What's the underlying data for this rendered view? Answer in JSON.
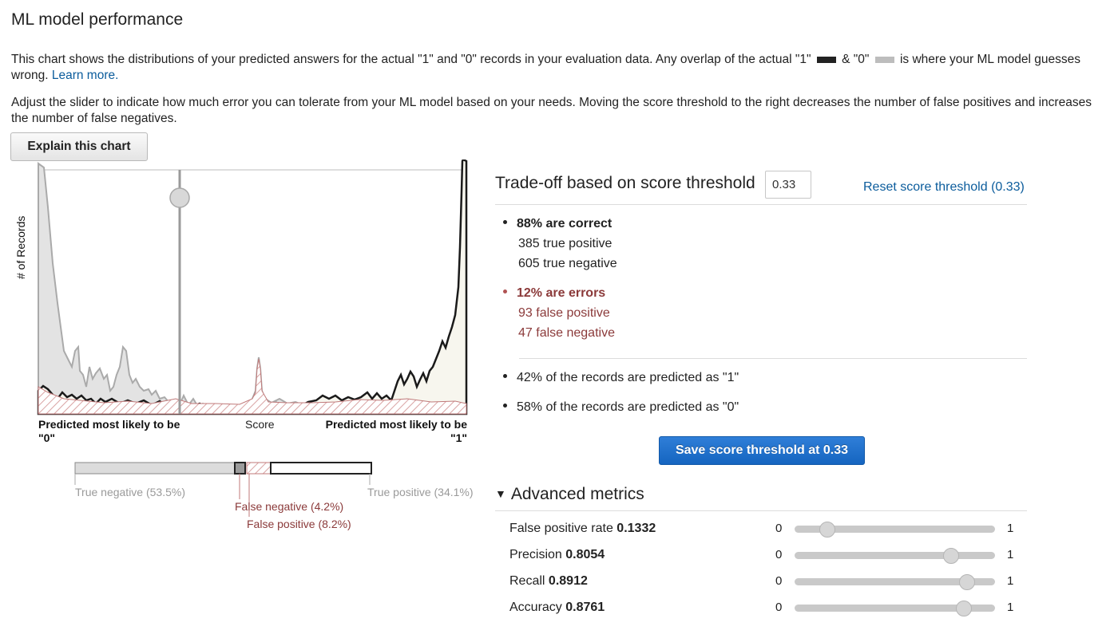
{
  "page": {
    "title": "ML model performance",
    "para1_text": "This chart shows the distributions of your predicted answers for the actual \"1\" and \"0\" records in your evaluation data. Any overlap of the actual \"1\"",
    "para1_amp": "&",
    "para1_zero": "\"0\"",
    "para1_tail": "is where your ML model guesses wrong.",
    "learn_more": "Learn more.",
    "para2_text": "Adjust the slider to indicate how much error you can tolerate from your ML model based on your needs. Moving the score threshold to the right decreases the number of false positives and increases the number of false negatives.",
    "explain_button": "Explain this chart"
  },
  "colors": {
    "actual_1": "#222222",
    "actual_0": "#bdbdbd",
    "error": "#8b3a3a",
    "primary": "#1a6dcc",
    "link": "#0b5c9c"
  },
  "chart": {
    "ylabel": "# of Records",
    "xlabel": "Score",
    "left_label": "Predicted most likely to be",
    "left_value": "\"0\"",
    "right_label": "Predicted most likely to be",
    "right_value": "\"1\"",
    "threshold": 0.33,
    "breakdown": {
      "true_negative": "True negative (53.5%)",
      "false_negative": "False negative (4.2%)",
      "false_positive": "False positive (8.2%)",
      "true_positive": "True positive (34.1%)"
    }
  },
  "tradeoff": {
    "title": "Trade-off based on score threshold",
    "threshold_value": "0.33",
    "reset_link": "Reset score threshold (0.33)",
    "correct_head": "88% are correct",
    "true_positive": "385 true positive",
    "true_negative": "605 true negative",
    "errors_head": "12% are errors",
    "false_positive": "93 false positive",
    "false_negative": "47 false negative",
    "predicted_1": "42% of the records are predicted as \"1\"",
    "predicted_0": "58% of the records are predicted as \"0\"",
    "save_button": "Save score threshold at 0.33"
  },
  "advanced": {
    "title": "Advanced metrics",
    "range_min": "0",
    "range_max": "1",
    "metrics": [
      {
        "label": "False positive rate",
        "value": "0.1332",
        "fraction": 0.1332
      },
      {
        "label": "Precision",
        "value": "0.8054",
        "fraction": 0.8054
      },
      {
        "label": "Recall",
        "value": "0.8912",
        "fraction": 0.8912
      },
      {
        "label": "Accuracy",
        "value": "0.8761",
        "fraction": 0.8761
      }
    ]
  }
}
